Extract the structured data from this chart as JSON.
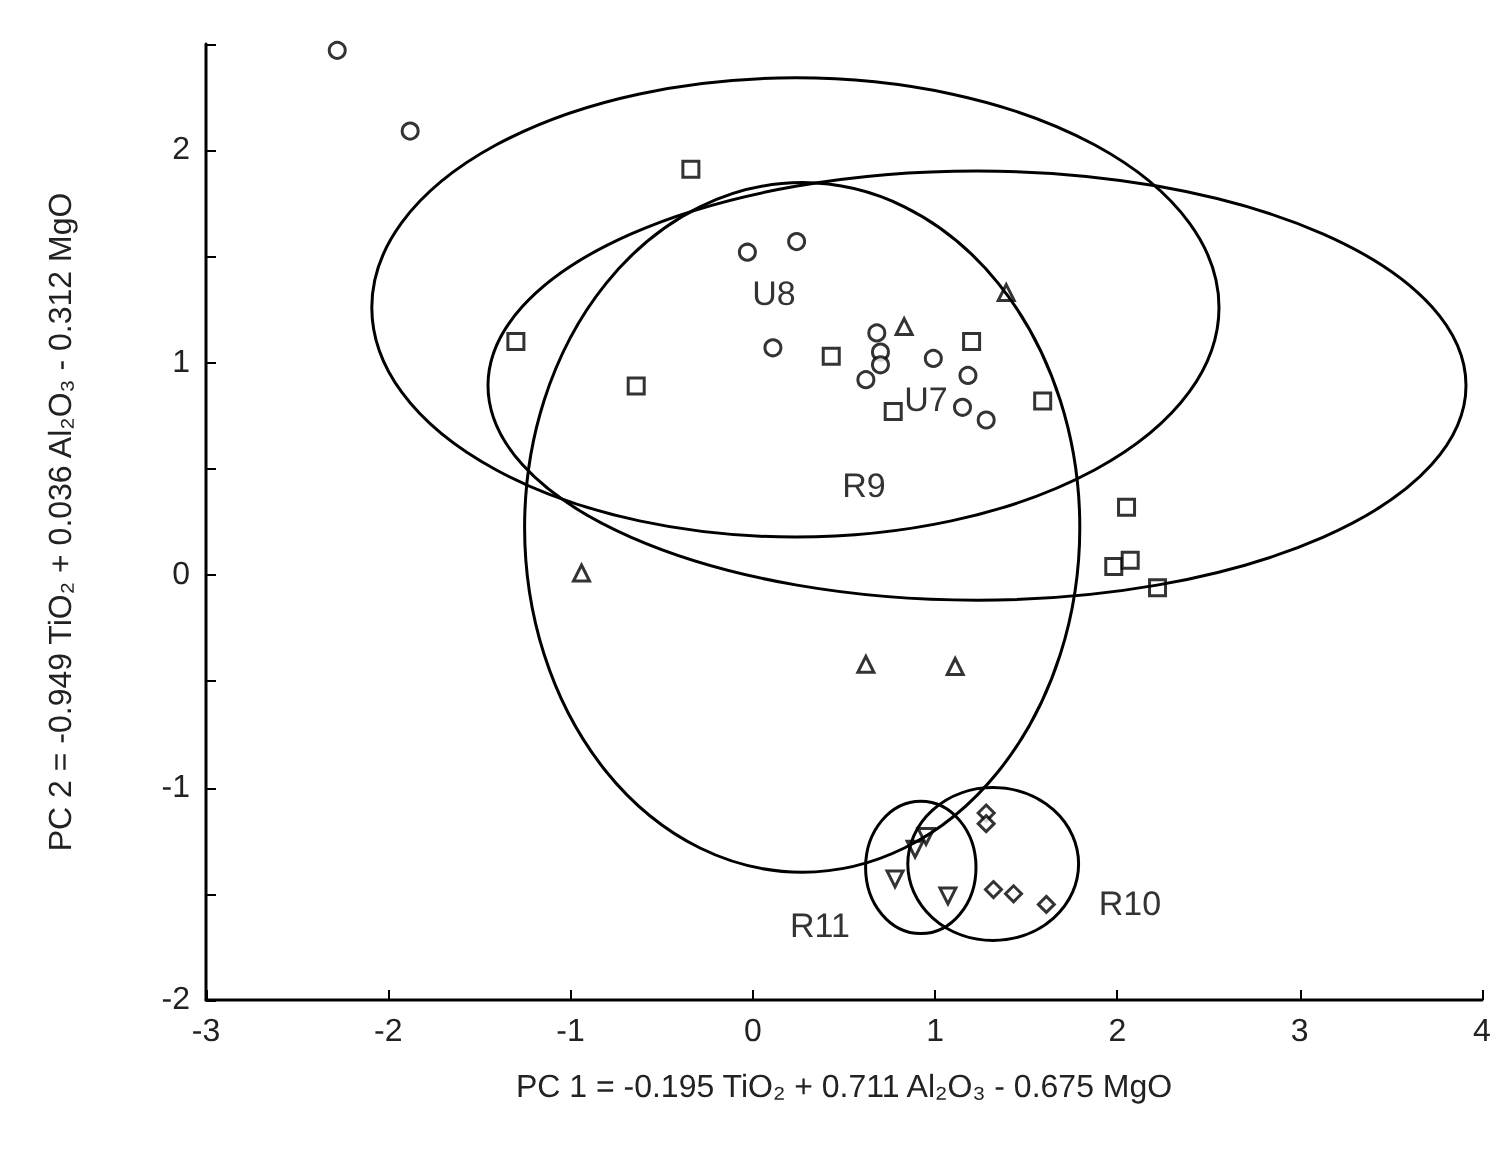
{
  "chart_data": {
    "type": "scatter",
    "xlabel": "PC 1 = -0.195 TiO₂ + 0.711 Al₂O₃ - 0.675 MgO",
    "ylabel": "PC 2 = -0.949 TiO₂ + 0.036 Al₂O₃ - 0.312 MgO",
    "xlim": [
      -3,
      4
    ],
    "xticks": [
      -3,
      -2,
      -1,
      0,
      1,
      2,
      3,
      4
    ],
    "ylim": [
      -2,
      2.5
    ],
    "yticks": [
      -2,
      {
        "value": -1.5,
        "label": null
      },
      -1,
      {
        "value": -0.5,
        "label": null
      },
      0,
      {
        "value": 0.5,
        "label": null
      },
      1,
      {
        "value": 1.5,
        "label": null
      },
      2,
      {
        "value": 2.5,
        "label": null
      }
    ],
    "grid": false,
    "series": [
      {
        "marker": "circle",
        "color": "#000000",
        "x": [
          -2.28,
          -1.88,
          -0.03,
          0.24,
          0.11,
          0.68,
          0.7,
          0.7,
          0.62,
          0.99,
          1.18,
          1.15,
          1.28
        ],
        "values": [
          2.47,
          2.09,
          1.52,
          1.57,
          1.07,
          1.14,
          1.05,
          0.99,
          0.92,
          1.02,
          0.94,
          0.79,
          0.73
        ]
      },
      {
        "marker": "square",
        "color": "#000000",
        "x": [
          -0.34,
          -1.3,
          -0.64,
          0.43,
          0.77,
          1.2,
          1.59,
          2.05,
          1.98,
          2.07,
          2.22
        ],
        "values": [
          1.91,
          1.1,
          0.89,
          1.03,
          0.77,
          1.1,
          0.82,
          0.32,
          0.04,
          0.07,
          -0.06
        ]
      },
      {
        "marker": "triangle",
        "color": "#000000",
        "x": [
          0.83,
          1.39,
          -0.94,
          0.62,
          1.11
        ],
        "values": [
          1.17,
          1.33,
          0.01,
          -0.42,
          -0.43
        ]
      },
      {
        "marker": "triangle_down",
        "color": "#000000",
        "x": [
          0.78,
          0.89,
          0.95,
          1.07
        ],
        "values": [
          -1.43,
          -1.29,
          -1.23,
          -1.51
        ]
      },
      {
        "marker": "diamond",
        "color": "#000000",
        "x": [
          1.28,
          1.28,
          1.32,
          1.43,
          1.61
        ],
        "values": [
          -1.12,
          -1.17,
          -1.48,
          -1.5,
          -1.55
        ]
      }
    ],
    "annotations": [
      "U8",
      "U7",
      "R9",
      "R11",
      "R10"
    ]
  }
}
